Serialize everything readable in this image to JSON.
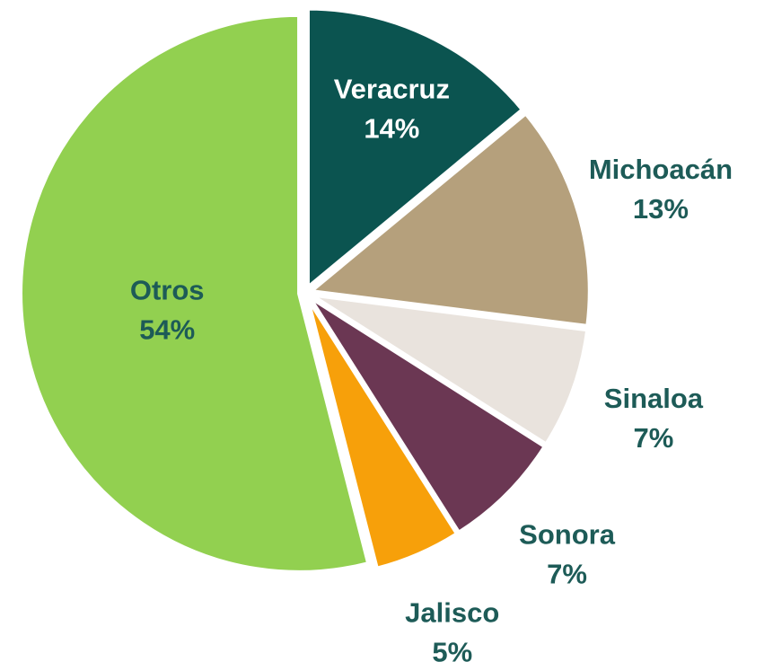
{
  "chart_data": {
    "type": "pie",
    "categories": [
      "Veracruz",
      "Michoacán",
      "Sinaloa",
      "Sonora",
      "Jalisco",
      "Otros"
    ],
    "values": [
      14,
      13,
      7,
      7,
      5,
      54
    ],
    "value_labels": [
      "14%",
      "13%",
      "7%",
      "7%",
      "5%",
      "54%"
    ],
    "colors": [
      "#0b5450",
      "#b5a07c",
      "#e9e3dd",
      "#6b3753",
      "#f7a00a",
      "#92d050"
    ]
  }
}
